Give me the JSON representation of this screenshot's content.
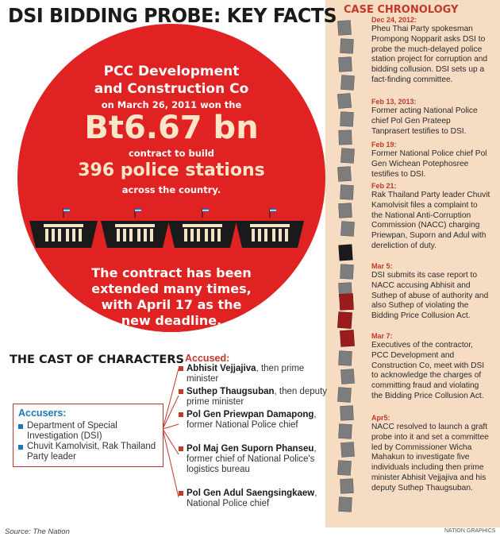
{
  "title": "DSI BIDDING PROBE: KEY FACTS",
  "colors": {
    "red": "#e02222",
    "cream": "#f7dcc4",
    "blue": "#1f77b4",
    "dark_red": "#c0392b"
  },
  "circle": {
    "line1": "PCC Development",
    "line2": "and Construction Co",
    "line3": "on March 26, 2011 won the",
    "amount": "Bt6.67 bn",
    "line5": "contract to build",
    "stations": "396 police stations",
    "line7": "across the country.",
    "extension": [
      "The contract has been",
      "extended many times,",
      "with April 17 as the",
      "new deadline."
    ]
  },
  "cast": {
    "title": "THE CAST OF CHARACTERS",
    "accusers_title": "Accusers:",
    "accusers": [
      "Department of Special Investigation (DSI)",
      "Chuvit Kamolvisit, Rak Thailand Party leader"
    ],
    "accused_title": "Accused:",
    "accused": [
      {
        "name": "Abhisit Vejjajiva",
        "role": ", then prime minister"
      },
      {
        "name": "Suthep Thaugsuban",
        "role": ", then deputy prime minister"
      },
      {
        "name": "Pol Gen Priewpan Damapong",
        "role": ", former National Police chief"
      },
      {
        "name": "Pol Maj Gen Suporn Phanseu",
        "role": ", former chief of National Police's logistics bureau"
      },
      {
        "name": "Pol Gen Adul Saengsingkaew",
        "role": ", National Police chief"
      }
    ]
  },
  "chronology": {
    "title": "CASE CHRONOLOGY",
    "entries": [
      {
        "date": "Dec 24, 2012:",
        "text": "Pheu Thai Party spokesman Prompong Nopparit asks DSI to probe the much-delayed police station project for corruption and bidding collusion. DSI sets up a fact-finding committee."
      },
      {
        "date": "Feb 13, 2013:",
        "text": "Former acting National Police chief Pol Gen Prateep Tanprasert testifies to DSI."
      },
      {
        "date": "Feb 19:",
        "text": "Former National Police chief Pol Gen Wichean Potephosree testifies to DSI."
      },
      {
        "date": "Feb 21:",
        "text": "Rak Thailand Party leader Chuvit Kamolvisit files a complaint to the National Anti-Corruption Commission (NACC) charging Priewpan, Suporn and Adul with dereliction of duty."
      },
      {
        "date": "Mar 5:",
        "text": "DSI submits its case report to NACC accusing Abhisit and Suthep of abuse of authority and also Suthep of violating the Bidding Price Collusion Act."
      },
      {
        "date": "Mar 7:",
        "text": "Executives of the contractor, PCC Development and Construction Co, meet with DSI to acknowledge the charges of committing fraud and violating the Bidding Price Collusion Act."
      },
      {
        "date": "Apr5:",
        "text": "NACC resolved to launch a graft probe into it and set a committee led by Commissioner Wicha Mahakun to investigate five individuals including then prime minister Abhisit Vejjajiva and his deputy Suthep Thaugsuban."
      }
    ]
  },
  "source": "Source: The Nation",
  "credit": "NATION GRAPHICS"
}
